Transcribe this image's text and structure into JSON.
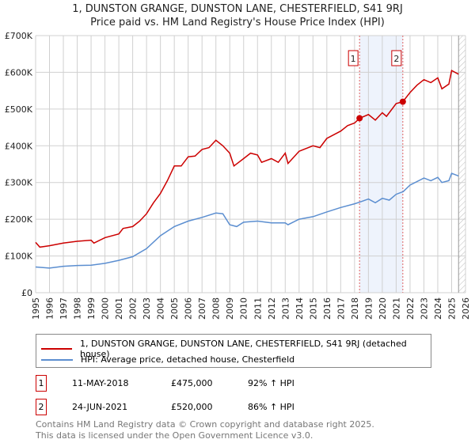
{
  "chart_data": {
    "type": "line",
    "title": "1, DUNSTON GRANGE, DUNSTON LANE, CHESTERFIELD, S41 9RJ",
    "subtitle": "Price paid vs. HM Land Registry's House Price Index (HPI)",
    "xlim": [
      1995,
      2026
    ],
    "ylim": [
      0,
      700000
    ],
    "y_ticks": [
      {
        "v": 0,
        "label": "£0"
      },
      {
        "v": 100000,
        "label": "£100K"
      },
      {
        "v": 200000,
        "label": "£200K"
      },
      {
        "v": 300000,
        "label": "£300K"
      },
      {
        "v": 400000,
        "label": "£400K"
      },
      {
        "v": 500000,
        "label": "£500K"
      },
      {
        "v": 600000,
        "label": "£600K"
      },
      {
        "v": 700000,
        "label": "£700K"
      }
    ],
    "x_ticks": [
      "1995",
      "1996",
      "1997",
      "1998",
      "1999",
      "2000",
      "2001",
      "2002",
      "2003",
      "2004",
      "2005",
      "2006",
      "2007",
      "2008",
      "2009",
      "2010",
      "2011",
      "2012",
      "2013",
      "2014",
      "2015",
      "2016",
      "2017",
      "2018",
      "2019",
      "2020",
      "2021",
      "2022",
      "2023",
      "2024",
      "2025",
      "2026"
    ],
    "grid": true,
    "shaded_range": [
      2018.36,
      2021.48
    ],
    "forecast_hatch_from": 2025.5,
    "series": [
      {
        "name": "1, DUNSTON GRANGE, DUNSTON LANE, CHESTERFIELD, S41 9RJ (detached house)",
        "color": "#cc0000",
        "x": [
          1995,
          1995.3,
          1996,
          1997,
          1998,
          1999,
          1999.2,
          2000,
          2001,
          2001.3,
          2002,
          2002.5,
          2003,
          2003.5,
          2004,
          2004.5,
          2005,
          2005.5,
          2006,
          2006.5,
          2007,
          2007.5,
          2008,
          2008.5,
          2009,
          2009.3,
          2010,
          2010.5,
          2011,
          2011.3,
          2012,
          2012.5,
          2013,
          2013.2,
          2014,
          2015,
          2015.5,
          2016,
          2017,
          2017.5,
          2018,
          2018.36,
          2019,
          2019.5,
          2020,
          2020.3,
          2021,
          2021.48,
          2022,
          2022.5,
          2023,
          2023.5,
          2024,
          2024.3,
          2024.8,
          2025,
          2025.5
        ],
        "y": [
          137000,
          124000,
          128000,
          135000,
          140000,
          143000,
          135000,
          150000,
          160000,
          175000,
          180000,
          195000,
          215000,
          245000,
          270000,
          305000,
          345000,
          345000,
          370000,
          372000,
          390000,
          395000,
          415000,
          400000,
          380000,
          345000,
          365000,
          380000,
          375000,
          355000,
          365000,
          355000,
          380000,
          352000,
          385000,
          400000,
          395000,
          420000,
          440000,
          455000,
          462000,
          475000,
          485000,
          470000,
          490000,
          480000,
          515000,
          520000,
          545000,
          565000,
          580000,
          572000,
          585000,
          555000,
          568000,
          605000,
          595000
        ]
      },
      {
        "name": "HPI: Average price, detached house, Chesterfield",
        "color": "#5b8ed0",
        "x": [
          1995,
          1996,
          1997,
          1998,
          1999,
          2000,
          2001,
          2002,
          2003,
          2004,
          2005,
          2006,
          2007,
          2008,
          2008.5,
          2009,
          2009.5,
          2010,
          2011,
          2012,
          2013,
          2013.2,
          2014,
          2015,
          2016,
          2017,
          2018,
          2018.4,
          2019,
          2019.5,
          2020,
          2020.5,
          2021,
          2021.5,
          2022,
          2023,
          2023.5,
          2024,
          2024.3,
          2024.8,
          2025,
          2025.5
        ],
        "y": [
          70000,
          67000,
          72000,
          74000,
          75000,
          80000,
          88000,
          98000,
          120000,
          155000,
          180000,
          195000,
          205000,
          217000,
          215000,
          185000,
          180000,
          192000,
          195000,
          190000,
          190000,
          185000,
          200000,
          207000,
          220000,
          232000,
          242000,
          247000,
          255000,
          245000,
          257000,
          252000,
          268000,
          275000,
          293000,
          312000,
          305000,
          314000,
          300000,
          305000,
          325000,
          318000
        ]
      }
    ],
    "sales": [
      {
        "id": "1",
        "x": 2018.36,
        "price": 475000,
        "date": "11-MAY-2018",
        "price_label": "£475,000",
        "hpi": "92% ↑ HPI"
      },
      {
        "id": "2",
        "x": 2021.48,
        "price": 520000,
        "date": "24-JUN-2021",
        "price_label": "£520,000",
        "hpi": "86% ↑ HPI"
      }
    ]
  },
  "footer": {
    "line1": "Contains HM Land Registry data © Crown copyright and database right 2025.",
    "line2": "This data is licensed under the Open Government Licence v3.0."
  }
}
